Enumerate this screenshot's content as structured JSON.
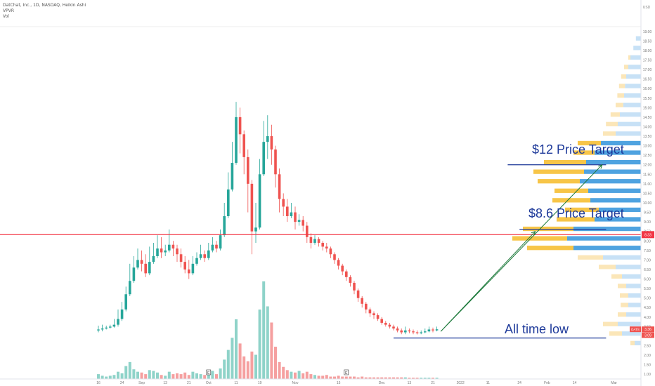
{
  "legend": {
    "symbol_line": "DatChat, Inc., 1D, NASDAQ, Heikin Ashi",
    "indicator1": "VPVR",
    "indicator2": "Vol"
  },
  "price_axis": {
    "currency": "USD",
    "min": 0.75,
    "max": 19.25,
    "ticks": [
      "1.00",
      "1.50",
      "2.00",
      "2.50",
      "3.00",
      "3.50",
      "4.00",
      "4.50",
      "5.00",
      "5.50",
      "6.00",
      "6.50",
      "7.00",
      "7.50",
      "8.00",
      "8.50",
      "9.00",
      "9.50",
      "10.00",
      "10.50",
      "11.00",
      "11.50",
      "12.00",
      "12.50",
      "13.00",
      "13.50",
      "14.00",
      "14.50",
      "15.00",
      "15.50",
      "16.00",
      "16.50",
      "17.00",
      "17.50",
      "18.00",
      "18.50",
      "19.00"
    ],
    "current_price_label": "8.33",
    "symbol_tag": "DATS",
    "last_price_label": "3.36",
    "low_label": "3.09"
  },
  "time_axis": {
    "labels": [
      {
        "text": "16",
        "idx": 0
      },
      {
        "text": "24",
        "idx": 6
      },
      {
        "text": "Sep",
        "idx": 11
      },
      {
        "text": "13",
        "idx": 17
      },
      {
        "text": "21",
        "idx": 23
      },
      {
        "text": "Oct",
        "idx": 28
      },
      {
        "text": "11",
        "idx": 35
      },
      {
        "text": "19",
        "idx": 41
      },
      {
        "text": "Nov",
        "idx": 50
      },
      {
        "text": "15",
        "idx": 61
      },
      {
        "text": "Dec",
        "idx": 72
      },
      {
        "text": "13",
        "idx": 79
      },
      {
        "text": "21",
        "idx": 85
      },
      {
        "text": "2022",
        "idx": 92
      },
      {
        "text": "11",
        "idx": 99
      },
      {
        "text": "24",
        "idx": 107
      },
      {
        "text": "Feb",
        "idx": 114
      },
      {
        "text": "14",
        "idx": 121
      },
      {
        "text": "Mar",
        "idx": 131
      }
    ]
  },
  "annotations": {
    "target_12": "$12 Price Target",
    "target_86": "$8.6 Price Target",
    "all_time_low": "All time low"
  },
  "chart_data": {
    "type": "candlestick",
    "title": "DatChat, Inc., 1D, NASDAQ, Heikin Ashi",
    "x_index_range": [
      -2,
      134
    ],
    "ylim": [
      0.75,
      19.25
    ],
    "colors": {
      "up": "#26a69a",
      "down": "#ef5350",
      "vol_up": "#8fd3c9",
      "vol_down": "#f5a0a0",
      "horizontal_line": "#f23645",
      "annotation": "#1e3a9a",
      "arrow": "#1e7a3c",
      "vpvr_up_value_area": "#f7c548",
      "vpvr_down_value_area": "#4fa3e0",
      "vpvr_up_outer": "#fbe6b8",
      "vpvr_down_outer": "#c7e1f6"
    },
    "candles": [
      [
        3.3,
        3.35,
        3.2,
        3.55
      ],
      [
        3.35,
        3.4,
        3.25,
        3.6
      ],
      [
        3.4,
        3.45,
        3.35,
        3.55
      ],
      [
        3.45,
        3.5,
        3.4,
        3.6
      ],
      [
        3.5,
        3.6,
        3.45,
        3.9
      ],
      [
        3.6,
        3.9,
        3.5,
        4.4
      ],
      [
        3.9,
        4.4,
        3.8,
        4.8
      ],
      [
        4.4,
        5.2,
        4.3,
        5.6
      ],
      [
        5.2,
        5.9,
        5.1,
        6.8
      ],
      [
        5.9,
        6.6,
        5.8,
        7.2
      ],
      [
        6.6,
        7.0,
        6.5,
        7.6
      ],
      [
        7.0,
        6.8,
        6.4,
        7.5
      ],
      [
        6.8,
        6.3,
        6.1,
        7.3
      ],
      [
        6.3,
        6.9,
        6.2,
        7.7
      ],
      [
        6.9,
        7.2,
        6.8,
        7.9
      ],
      [
        7.2,
        7.6,
        7.1,
        8.3
      ],
      [
        7.6,
        7.4,
        7.1,
        8.2
      ],
      [
        7.4,
        7.5,
        7.2,
        7.8
      ],
      [
        7.5,
        7.8,
        7.4,
        8.6
      ],
      [
        7.8,
        7.6,
        7.2,
        8.0
      ],
      [
        7.6,
        7.3,
        6.9,
        7.8
      ],
      [
        7.3,
        6.9,
        6.6,
        7.6
      ],
      [
        6.9,
        6.5,
        6.3,
        7.2
      ],
      [
        6.5,
        6.3,
        6.0,
        7.0
      ],
      [
        6.3,
        6.8,
        6.2,
        7.2
      ],
      [
        6.8,
        7.1,
        6.7,
        7.4
      ],
      [
        7.1,
        7.3,
        7.0,
        7.8
      ],
      [
        7.3,
        7.1,
        6.9,
        7.5
      ],
      [
        7.1,
        7.5,
        7.0,
        7.9
      ],
      [
        7.5,
        7.8,
        7.4,
        8.2
      ],
      [
        7.8,
        7.6,
        7.4,
        8.0
      ],
      [
        7.6,
        8.3,
        7.5,
        8.6
      ],
      [
        8.3,
        9.3,
        8.2,
        10.0
      ],
      [
        9.3,
        10.7,
        9.2,
        11.6
      ],
      [
        10.7,
        12.1,
        10.6,
        13.2
      ],
      [
        12.1,
        14.5,
        12.0,
        15.3
      ],
      [
        14.5,
        13.6,
        12.6,
        15.0
      ],
      [
        13.6,
        12.4,
        11.5,
        13.8
      ],
      [
        12.4,
        11.0,
        9.5,
        12.8
      ],
      [
        11.0,
        8.5,
        7.3,
        11.2
      ],
      [
        8.5,
        8.7,
        7.9,
        10.0
      ],
      [
        8.7,
        11.5,
        8.6,
        12.3
      ],
      [
        11.5,
        13.2,
        11.4,
        14.3
      ],
      [
        13.2,
        13.5,
        12.3,
        14.6
      ],
      [
        13.5,
        12.8,
        12.0,
        14.1
      ],
      [
        12.8,
        11.5,
        10.8,
        13.0
      ],
      [
        11.5,
        10.2,
        9.5,
        11.8
      ],
      [
        10.2,
        9.8,
        9.3,
        10.5
      ],
      [
        9.8,
        9.3,
        9.0,
        10.2
      ],
      [
        9.3,
        9.5,
        9.2,
        10.0
      ],
      [
        9.5,
        9.0,
        8.6,
        9.8
      ],
      [
        9.0,
        9.1,
        8.8,
        9.4
      ],
      [
        9.1,
        8.8,
        8.5,
        9.3
      ],
      [
        8.8,
        8.2,
        7.9,
        9.0
      ],
      [
        8.2,
        7.9,
        7.6,
        8.4
      ],
      [
        7.9,
        8.1,
        7.8,
        8.3
      ],
      [
        8.1,
        7.9,
        7.7,
        8.2
      ],
      [
        7.9,
        7.7,
        7.5,
        8.0
      ],
      [
        7.7,
        7.6,
        7.4,
        7.9
      ],
      [
        7.6,
        7.3,
        7.1,
        7.7
      ],
      [
        7.3,
        7.0,
        6.8,
        7.4
      ],
      [
        7.0,
        6.7,
        6.5,
        7.1
      ],
      [
        6.7,
        6.4,
        6.2,
        6.8
      ],
      [
        6.4,
        6.1,
        5.9,
        6.5
      ],
      [
        6.1,
        5.8,
        5.6,
        6.2
      ],
      [
        5.8,
        5.4,
        5.2,
        5.9
      ],
      [
        5.4,
        5.0,
        4.8,
        5.5
      ],
      [
        5.0,
        4.7,
        4.5,
        5.1
      ],
      [
        4.7,
        4.4,
        4.2,
        4.8
      ],
      [
        4.4,
        4.2,
        4.0,
        4.5
      ],
      [
        4.2,
        4.1,
        3.9,
        4.3
      ],
      [
        4.1,
        3.9,
        3.8,
        4.2
      ],
      [
        3.9,
        3.7,
        3.6,
        4.0
      ],
      [
        3.7,
        3.6,
        3.5,
        3.8
      ],
      [
        3.6,
        3.5,
        3.4,
        3.7
      ],
      [
        3.5,
        3.4,
        3.3,
        3.6
      ],
      [
        3.4,
        3.3,
        3.2,
        3.5
      ],
      [
        3.3,
        3.2,
        3.1,
        3.4
      ],
      [
        3.2,
        3.3,
        3.1,
        3.5
      ],
      [
        3.3,
        3.25,
        3.15,
        3.4
      ],
      [
        3.25,
        3.2,
        3.1,
        3.35
      ],
      [
        3.2,
        3.15,
        3.09,
        3.3
      ],
      [
        3.15,
        3.2,
        3.1,
        3.3
      ],
      [
        3.2,
        3.25,
        3.15,
        3.4
      ],
      [
        3.25,
        3.35,
        3.2,
        3.5
      ],
      [
        3.35,
        3.3,
        3.2,
        3.45
      ],
      [
        3.3,
        3.36,
        3.25,
        3.5
      ]
    ],
    "volume": [
      [
        0,
        0.6
      ],
      [
        1,
        0.4
      ],
      [
        2,
        0.3
      ],
      [
        3,
        0.4
      ],
      [
        4,
        0.5
      ],
      [
        5,
        0.9
      ],
      [
        6,
        0.7
      ],
      [
        7,
        1.6
      ],
      [
        8,
        2.1
      ],
      [
        9,
        1.2
      ],
      [
        10,
        0.9
      ],
      [
        11,
        0.8
      ],
      [
        12,
        0.6
      ],
      [
        13,
        1.1
      ],
      [
        14,
        1.0
      ],
      [
        15,
        0.8
      ],
      [
        16,
        0.5
      ],
      [
        17,
        0.4
      ],
      [
        18,
        0.9
      ],
      [
        19,
        0.6
      ],
      [
        20,
        0.7
      ],
      [
        21,
        0.6
      ],
      [
        22,
        0.8
      ],
      [
        23,
        0.5
      ],
      [
        24,
        0.9
      ],
      [
        25,
        0.7
      ],
      [
        26,
        0.6
      ],
      [
        27,
        0.5
      ],
      [
        28,
        0.7
      ],
      [
        29,
        1.0
      ],
      [
        30,
        0.6
      ],
      [
        31,
        1.3
      ],
      [
        32,
        2.4
      ],
      [
        33,
        3.6
      ],
      [
        34,
        5.1
      ],
      [
        35,
        7.4
      ],
      [
        36,
        4.4
      ],
      [
        37,
        2.8
      ],
      [
        38,
        2.2
      ],
      [
        39,
        3.4
      ],
      [
        40,
        3.0
      ],
      [
        41,
        8.6
      ],
      [
        42,
        12.1
      ],
      [
        43,
        9.0
      ],
      [
        44,
        7.0
      ],
      [
        45,
        4.0
      ],
      [
        46,
        2.1
      ],
      [
        47,
        1.5
      ],
      [
        48,
        1.1
      ],
      [
        49,
        0.9
      ],
      [
        50,
        0.8
      ],
      [
        51,
        1.0
      ],
      [
        52,
        0.7
      ],
      [
        53,
        0.9
      ],
      [
        54,
        0.6
      ],
      [
        55,
        0.5
      ],
      [
        56,
        0.4
      ],
      [
        57,
        0.4
      ],
      [
        58,
        0.5
      ],
      [
        59,
        0.3
      ],
      [
        60,
        0.3
      ],
      [
        61,
        0.4
      ],
      [
        62,
        0.3
      ],
      [
        63,
        0.3
      ],
      [
        64,
        0.3
      ],
      [
        65,
        0.3
      ],
      [
        66,
        0.2
      ],
      [
        67,
        0.3
      ],
      [
        68,
        0.2
      ],
      [
        69,
        0.2
      ],
      [
        70,
        0.2
      ],
      [
        71,
        0.2
      ],
      [
        72,
        0.2
      ],
      [
        73,
        0.2
      ],
      [
        74,
        0.2
      ],
      [
        75,
        0.2
      ],
      [
        76,
        0.2
      ],
      [
        77,
        0.2
      ],
      [
        78,
        0.2
      ],
      [
        79,
        0.15
      ],
      [
        80,
        0.15
      ],
      [
        81,
        0.15
      ],
      [
        82,
        0.15
      ],
      [
        83,
        0.15
      ],
      [
        84,
        0.15
      ],
      [
        85,
        0.15
      ],
      [
        86,
        0.15
      ]
    ],
    "horizontal_line_price": 8.33,
    "trendlines": [
      {
        "name": "target-12-line",
        "y": 12.0,
        "x_from": 104,
        "x_to": 129
      },
      {
        "name": "target-86-line",
        "y": 8.6,
        "x_from": 107,
        "x_to": 129
      },
      {
        "name": "all-time-low-line",
        "y": 2.9,
        "x_from": 75,
        "x_to": 129
      }
    ],
    "arrows": [
      {
        "name": "arrow-to-86",
        "from": [
          87,
          3.25
        ],
        "to": [
          111,
          8.5
        ]
      },
      {
        "name": "arrow-to-12",
        "from": [
          87,
          3.25
        ],
        "to": [
          128,
          12.0
        ]
      }
    ],
    "vpvr": [
      [
        18.5,
        0,
        0.12
      ],
      [
        18.0,
        0,
        0.18
      ],
      [
        17.5,
        0.05,
        0.25
      ],
      [
        17.0,
        0.1,
        0.3
      ],
      [
        16.5,
        0.12,
        0.35
      ],
      [
        16.0,
        0.14,
        0.38
      ],
      [
        15.5,
        0.16,
        0.4
      ],
      [
        15.0,
        0.18,
        0.42
      ],
      [
        14.5,
        0.22,
        0.5
      ],
      [
        14.0,
        0.28,
        0.55
      ],
      [
        13.5,
        0.3,
        0.6
      ],
      [
        13.0,
        0.55,
        0.95
      ],
      [
        12.5,
        0.5,
        1.1
      ],
      [
        12.0,
        1.0,
        1.3
      ],
      [
        11.5,
        1.2,
        1.35
      ],
      [
        11.0,
        1.0,
        1.45
      ],
      [
        10.5,
        0.8,
        1.25
      ],
      [
        10.0,
        0.9,
        1.2
      ],
      [
        9.5,
        0.8,
        1.0
      ],
      [
        9.0,
        0.9,
        1.1
      ],
      [
        8.5,
        1.2,
        1.6
      ],
      [
        8.0,
        1.3,
        1.75
      ],
      [
        7.5,
        1.1,
        1.6
      ],
      [
        7.0,
        0.6,
        0.9
      ],
      [
        6.5,
        0.4,
        0.6
      ],
      [
        6.0,
        0.25,
        0.45
      ],
      [
        5.5,
        0.2,
        0.35
      ],
      [
        5.0,
        0.2,
        0.3
      ],
      [
        4.5,
        0.18,
        0.3
      ],
      [
        4.0,
        0.2,
        0.35
      ],
      [
        3.5,
        0.35,
        0.55
      ],
      [
        3.0,
        0.3,
        0.45
      ],
      [
        2.5,
        0.1,
        0.15
      ]
    ]
  }
}
